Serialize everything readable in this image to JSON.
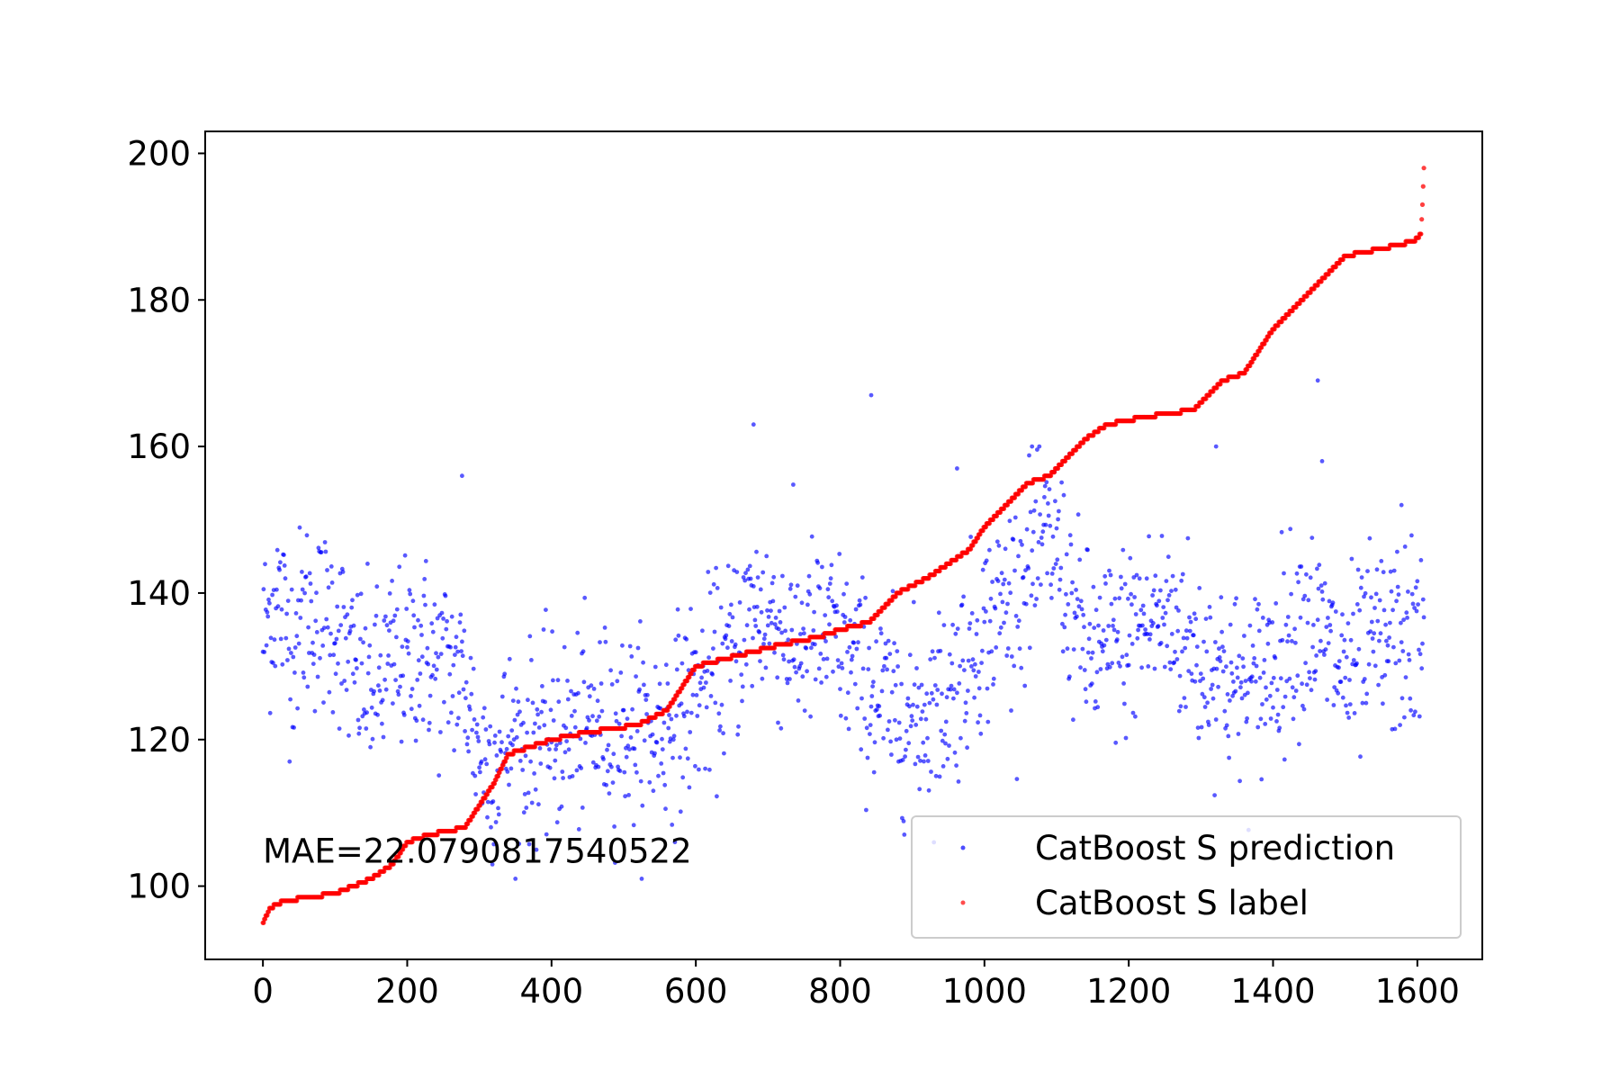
{
  "chart_data": {
    "type": "scatter",
    "title": "",
    "xlabel": "",
    "ylabel": "",
    "xlim": [
      -80,
      1690
    ],
    "ylim": [
      90,
      203
    ],
    "x_ticks": [
      0,
      200,
      400,
      600,
      800,
      1000,
      1200,
      1400,
      1600
    ],
    "y_ticks": [
      100,
      120,
      140,
      160,
      180,
      200
    ],
    "x_tick_labels": [
      "0",
      "200",
      "400",
      "600",
      "800",
      "1000",
      "1200",
      "1400",
      "1600"
    ],
    "y_tick_labels": [
      "100",
      "120",
      "140",
      "160",
      "180",
      "200"
    ],
    "grid": false,
    "legend_position": "lower-right",
    "annotation": "MAE=22.0790817540522",
    "n_points": 1610,
    "series": [
      {
        "name": "CatBoost S prediction",
        "color": "#0000ff",
        "marker": "dot",
        "description_of_values": "noisy predictions mostly between 110 and 160",
        "x_range": [
          0,
          1609
        ],
        "values_sample": [
          [
            0,
            134
          ],
          [
            20,
            140
          ],
          [
            40,
            133
          ],
          [
            60,
            138
          ],
          [
            80,
            136
          ],
          [
            100,
            137
          ],
          [
            120,
            130
          ],
          [
            140,
            128
          ],
          [
            160,
            127
          ],
          [
            180,
            131
          ],
          [
            200,
            131
          ],
          [
            220,
            133
          ],
          [
            240,
            130
          ],
          [
            260,
            130
          ],
          [
            280,
            128
          ],
          [
            300,
            118
          ],
          [
            320,
            117
          ],
          [
            340,
            120
          ],
          [
            360,
            119
          ],
          [
            380,
            120
          ],
          [
            400,
            120
          ],
          [
            420,
            121
          ],
          [
            440,
            121
          ],
          [
            460,
            122
          ],
          [
            480,
            122
          ],
          [
            500,
            122
          ],
          [
            520,
            121
          ],
          [
            540,
            121
          ],
          [
            560,
            122
          ],
          [
            580,
            124
          ],
          [
            600,
            126
          ],
          [
            620,
            128
          ],
          [
            640,
            130
          ],
          [
            660,
            134
          ],
          [
            680,
            138
          ],
          [
            700,
            137
          ],
          [
            720,
            135
          ],
          [
            740,
            133
          ],
          [
            760,
            134
          ],
          [
            780,
            134
          ],
          [
            800,
            133
          ],
          [
            820,
            130
          ],
          [
            840,
            127
          ],
          [
            860,
            125
          ],
          [
            880,
            124
          ],
          [
            900,
            123
          ],
          [
            920,
            124
          ],
          [
            940,
            125
          ],
          [
            960,
            128
          ],
          [
            980,
            132
          ],
          [
            1000,
            135
          ],
          [
            1020,
            138
          ],
          [
            1040,
            140
          ],
          [
            1060,
            143
          ],
          [
            1080,
            146
          ],
          [
            1100,
            147
          ],
          [
            1120,
            138
          ],
          [
            1140,
            133
          ],
          [
            1160,
            131
          ],
          [
            1180,
            133
          ],
          [
            1200,
            134
          ],
          [
            1220,
            136
          ],
          [
            1240,
            137
          ],
          [
            1260,
            136
          ],
          [
            1280,
            134
          ],
          [
            1300,
            130
          ],
          [
            1320,
            131
          ],
          [
            1340,
            128
          ],
          [
            1360,
            126
          ],
          [
            1380,
            128
          ],
          [
            1400,
            131
          ],
          [
            1420,
            134
          ],
          [
            1440,
            137
          ],
          [
            1460,
            135
          ],
          [
            1480,
            132
          ],
          [
            1500,
            129
          ],
          [
            1520,
            130
          ],
          [
            1540,
            133
          ],
          [
            1560,
            133
          ],
          [
            1580,
            134
          ],
          [
            1600,
            133
          ]
        ],
        "outliers": [
          [
            276,
            156
          ],
          [
            680,
            163
          ],
          [
            843,
            167
          ],
          [
            1462,
            169
          ],
          [
            1468,
            158
          ],
          [
            1578,
            152
          ],
          [
            1321,
            160
          ],
          [
            1118,
            159
          ],
          [
            1066,
            160
          ],
          [
            962,
            157
          ]
        ]
      },
      {
        "name": "CatBoost S label",
        "color": "#ff0000",
        "marker": "dot",
        "description_of_values": "sorted ground-truth labels rising stepwise from 95 to 198",
        "breakpoints": [
          [
            0,
            95
          ],
          [
            10,
            97
          ],
          [
            30,
            98
          ],
          [
            100,
            99
          ],
          [
            125,
            100
          ],
          [
            150,
            101
          ],
          [
            180,
            103
          ],
          [
            200,
            106
          ],
          [
            230,
            107
          ],
          [
            280,
            108
          ],
          [
            300,
            111
          ],
          [
            320,
            114
          ],
          [
            340,
            118
          ],
          [
            370,
            119
          ],
          [
            400,
            120
          ],
          [
            450,
            121
          ],
          [
            520,
            122
          ],
          [
            560,
            124
          ],
          [
            580,
            127
          ],
          [
            600,
            130
          ],
          [
            640,
            131
          ],
          [
            680,
            132
          ],
          [
            720,
            133
          ],
          [
            770,
            134
          ],
          [
            800,
            135
          ],
          [
            840,
            136
          ],
          [
            860,
            138
          ],
          [
            880,
            140
          ],
          [
            920,
            142
          ],
          [
            950,
            144
          ],
          [
            980,
            146
          ],
          [
            1000,
            149
          ],
          [
            1020,
            151
          ],
          [
            1040,
            153
          ],
          [
            1060,
            155
          ],
          [
            1090,
            156
          ],
          [
            1120,
            159
          ],
          [
            1140,
            161
          ],
          [
            1170,
            163
          ],
          [
            1220,
            164
          ],
          [
            1290,
            165
          ],
          [
            1310,
            167
          ],
          [
            1330,
            169
          ],
          [
            1360,
            170
          ],
          [
            1380,
            173
          ],
          [
            1400,
            176
          ],
          [
            1420,
            178
          ],
          [
            1440,
            180
          ],
          [
            1460,
            182
          ],
          [
            1480,
            184
          ],
          [
            1500,
            186
          ],
          [
            1550,
            187
          ],
          [
            1595,
            188
          ],
          [
            1605,
            189
          ],
          [
            1607,
            193
          ],
          [
            1609,
            198
          ]
        ]
      }
    ]
  }
}
